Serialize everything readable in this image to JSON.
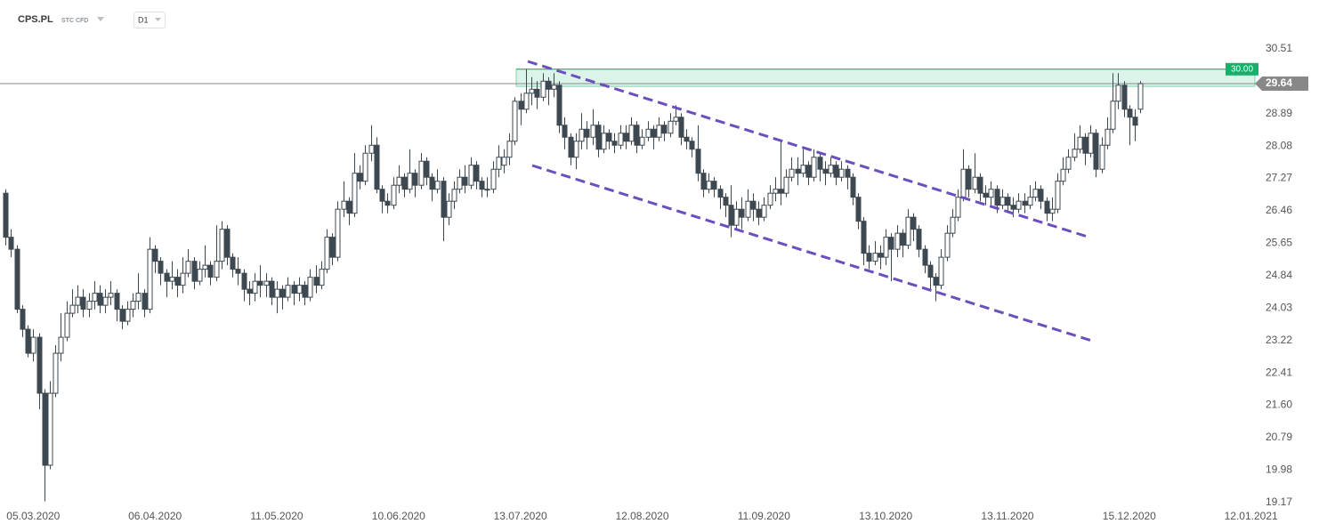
{
  "header": {
    "symbol": "CPS.PL",
    "instrument": "STC CFD",
    "interval": "D1"
  },
  "chart_data": {
    "type": "candlestick",
    "open": [
      26.9,
      25.8,
      25.5,
      24.0,
      23.5,
      22.9,
      23.3,
      21.9,
      20.1,
      21.9,
      22.9,
      23.3,
      23.9,
      24.1,
      24.3,
      24.0,
      24.2,
      24.4,
      24.1,
      24.3,
      24.4,
      24.0,
      23.7,
      24.0,
      24.2,
      24.4,
      24.0,
      25.5,
      25.2,
      24.9,
      24.7,
      24.8,
      24.6,
      24.9,
      25.2,
      24.7,
      25.0,
      25.1,
      24.8,
      25.2,
      26.0,
      25.3,
      25.0,
      24.9,
      24.5,
      24.4,
      24.7,
      24.6,
      24.7,
      24.3,
      24.5,
      24.3,
      24.6,
      24.4,
      24.6,
      24.3,
      24.8,
      24.6,
      25.0,
      25.8,
      25.3,
      26.5,
      26.7,
      26.4,
      27.4,
      27.2,
      27.9,
      28.1,
      27.0,
      26.7,
      26.6,
      27.1,
      27.3,
      27.0,
      27.4,
      27.1,
      27.7,
      27.3,
      27.0,
      27.2,
      26.3,
      26.7,
      27.0,
      27.3,
      27.1,
      27.6,
      27.2,
      27.0,
      27.0,
      27.5,
      27.6,
      27.8,
      28.2,
      29.2,
      29.0,
      29.4,
      29.5,
      29.3,
      29.7,
      29.5,
      29.6,
      28.6,
      28.3,
      27.8,
      28.2,
      28.5,
      28.3,
      28.6,
      28.0,
      28.4,
      28.2,
      28.1,
      28.4,
      28.2,
      28.6,
      28.1,
      28.3,
      28.5,
      28.3,
      28.6,
      28.4,
      28.7,
      28.8,
      28.3,
      28.2,
      28.0,
      27.4,
      27.0,
      27.2,
      27.0,
      26.8,
      26.6,
      26.1,
      26.5,
      26.3,
      26.7,
      26.5,
      26.3,
      26.6,
      26.9,
      27.0,
      26.9,
      27.3,
      27.5,
      27.4,
      27.6,
      27.3,
      27.8,
      27.5,
      27.4,
      27.6,
      27.3,
      27.5,
      27.3,
      26.8,
      26.2,
      25.4,
      25.2,
      25.4,
      25.3,
      25.8,
      25.5,
      25.9,
      25.6,
      26.3,
      26.0,
      25.5,
      25.1,
      24.8,
      24.6,
      25.3,
      25.9,
      26.3,
      26.8,
      27.5,
      27.0,
      27.3,
      26.9,
      26.8,
      27.0,
      26.6,
      26.8,
      26.6,
      26.5,
      26.7,
      26.6,
      26.8,
      27.0,
      26.7,
      26.4,
      26.5,
      27.2,
      27.5,
      27.8,
      28.0,
      28.3,
      27.9,
      28.4,
      27.5,
      28.1,
      28.5,
      29.2,
      29.6,
      29.0,
      28.8,
      29.0
    ],
    "high": [
      27.0,
      26.0,
      25.6,
      24.1,
      23.6,
      23.5,
      23.4,
      22.0,
      22.2,
      23.1,
      23.9,
      24.2,
      24.5,
      24.6,
      24.5,
      24.4,
      24.7,
      24.6,
      24.5,
      24.7,
      24.5,
      24.1,
      24.2,
      24.4,
      24.9,
      24.5,
      25.8,
      25.6,
      25.3,
      25.0,
      25.2,
      25.0,
      25.3,
      25.5,
      25.3,
      25.2,
      25.6,
      25.2,
      26.1,
      26.2,
      26.1,
      25.4,
      25.3,
      25.0,
      24.7,
      24.9,
      25.1,
      24.9,
      24.8,
      24.7,
      24.6,
      24.8,
      24.7,
      24.8,
      24.7,
      25.0,
      25.1,
      25.2,
      26.0,
      25.9,
      26.7,
      27.2,
      26.8,
      27.9,
      27.6,
      28.1,
      28.6,
      28.3,
      27.1,
      26.9,
      27.3,
      27.6,
      27.4,
      28.0,
      27.5,
      27.9,
      27.8,
      27.4,
      27.5,
      27.3,
      26.9,
      27.2,
      27.5,
      27.6,
      27.8,
      27.7,
      27.3,
      27.3,
      27.7,
      28.1,
      28.0,
      28.4,
      29.3,
      29.4,
      30.0,
      29.8,
      29.7,
      29.9,
      29.8,
      29.9,
      29.7,
      28.8,
      28.4,
      28.4,
      28.9,
      28.7,
      29.0,
      28.7,
      28.6,
      28.5,
      28.4,
      28.6,
      28.6,
      28.8,
      28.7,
      28.5,
      28.7,
      28.6,
      28.8,
      28.7,
      28.9,
      29.1,
      28.9,
      28.5,
      28.3,
      28.6,
      27.5,
      27.4,
      27.3,
      27.1,
      26.9,
      27.1,
      26.7,
      26.8,
      27.0,
      26.9,
      26.7,
      26.8,
      27.1,
      27.3,
      28.2,
      27.5,
      27.8,
      27.8,
      28.0,
      27.7,
      28.0,
      27.9,
      27.7,
      27.8,
      27.7,
      27.7,
      27.6,
      27.4,
      26.9,
      26.3,
      25.6,
      25.7,
      25.6,
      26.0,
      25.9,
      26.1,
      26.0,
      26.5,
      26.4,
      26.1,
      25.6,
      25.2,
      24.9,
      25.5,
      26.1,
      26.5,
      27.0,
      28.0,
      27.6,
      27.9,
      27.4,
      27.1,
      27.2,
      27.1,
      27.0,
      26.9,
      26.8,
      26.9,
      26.9,
      27.1,
      27.2,
      27.1,
      26.8,
      26.8,
      27.4,
      27.8,
      28.0,
      28.4,
      28.6,
      28.4,
      28.6,
      28.5,
      28.3,
      28.8,
      29.9,
      29.9,
      29.7,
      29.1,
      29.0,
      29.7
    ],
    "low": [
      25.6,
      25.3,
      23.9,
      23.3,
      22.8,
      22.7,
      21.5,
      19.2,
      20.0,
      21.8,
      22.7,
      23.2,
      23.8,
      23.9,
      23.8,
      23.8,
      24.0,
      23.9,
      23.9,
      24.1,
      23.7,
      23.5,
      23.6,
      23.8,
      24.0,
      23.8,
      23.9,
      24.9,
      24.6,
      24.3,
      24.5,
      24.3,
      24.4,
      24.8,
      24.5,
      24.6,
      24.8,
      24.6,
      24.7,
      25.0,
      25.1,
      24.8,
      24.6,
      24.2,
      24.1,
      24.2,
      24.3,
      24.3,
      24.1,
      23.9,
      24.0,
      24.2,
      24.1,
      24.2,
      24.1,
      24.2,
      24.4,
      24.5,
      24.9,
      25.1,
      25.2,
      26.3,
      26.1,
      26.3,
      27.0,
      27.1,
      27.7,
      26.9,
      26.4,
      26.4,
      26.5,
      26.9,
      26.8,
      26.9,
      26.8,
      27.0,
      27.1,
      26.7,
      26.9,
      25.7,
      26.1,
      26.5,
      26.9,
      26.9,
      27.0,
      27.0,
      26.8,
      26.8,
      26.9,
      27.3,
      27.4,
      27.6,
      28.1,
      28.6,
      28.9,
      29.1,
      29.0,
      29.2,
      29.1,
      29.3,
      28.4,
      28.0,
      27.6,
      27.5,
      28.0,
      28.0,
      28.1,
      27.8,
      27.9,
      28.0,
      27.9,
      28.0,
      28.0,
      28.1,
      27.9,
      28.0,
      28.2,
      28.0,
      28.2,
      28.2,
      28.3,
      28.6,
      28.1,
      28.0,
      27.8,
      27.2,
      26.8,
      26.9,
      26.8,
      26.5,
      26.3,
      25.8,
      26.0,
      26.0,
      26.2,
      26.2,
      26.1,
      26.2,
      26.5,
      26.7,
      26.6,
      26.8,
      27.2,
      27.1,
      27.3,
      27.1,
      27.2,
      27.2,
      27.1,
      27.3,
      27.1,
      27.2,
      27.0,
      26.6,
      26.0,
      25.1,
      25.0,
      25.1,
      25.0,
      25.1,
      24.7,
      25.3,
      25.3,
      25.5,
      25.7,
      25.3,
      24.9,
      24.5,
      24.2,
      24.5,
      25.2,
      25.8,
      26.2,
      26.7,
      26.8,
      26.9,
      26.7,
      26.6,
      26.6,
      26.4,
      26.5,
      26.4,
      26.3,
      26.4,
      26.4,
      26.5,
      26.7,
      26.5,
      26.2,
      26.2,
      26.4,
      27.1,
      27.4,
      27.7,
      27.9,
      27.6,
      27.8,
      27.3,
      27.4,
      28.0,
      28.4,
      29.0,
      28.8,
      28.1,
      28.2,
      28.9
    ],
    "close": [
      25.8,
      25.5,
      24.0,
      23.5,
      22.9,
      23.3,
      21.9,
      20.1,
      21.9,
      22.9,
      23.3,
      23.9,
      24.1,
      24.3,
      24.0,
      24.2,
      24.4,
      24.1,
      24.3,
      24.4,
      24.0,
      23.7,
      24.0,
      24.2,
      24.4,
      24.0,
      25.5,
      25.2,
      24.9,
      24.7,
      24.8,
      24.6,
      24.9,
      25.2,
      24.7,
      25.0,
      25.1,
      24.8,
      25.2,
      26.0,
      25.3,
      25.0,
      24.9,
      24.5,
      24.4,
      24.7,
      24.6,
      24.7,
      24.3,
      24.5,
      24.3,
      24.6,
      24.4,
      24.6,
      24.3,
      24.8,
      24.6,
      25.0,
      25.8,
      25.3,
      26.5,
      26.7,
      26.4,
      27.4,
      27.2,
      27.9,
      28.1,
      27.0,
      26.7,
      26.6,
      27.1,
      27.3,
      27.0,
      27.4,
      27.1,
      27.7,
      27.3,
      27.0,
      27.2,
      26.3,
      26.7,
      27.0,
      27.3,
      27.1,
      27.6,
      27.2,
      27.0,
      27.0,
      27.5,
      27.8,
      27.8,
      28.2,
      29.2,
      29.0,
      29.4,
      29.5,
      29.3,
      29.7,
      29.5,
      29.6,
      28.6,
      28.3,
      27.8,
      28.2,
      28.5,
      28.3,
      28.6,
      28.0,
      28.4,
      28.2,
      28.1,
      28.4,
      28.2,
      28.6,
      28.1,
      28.3,
      28.5,
      28.3,
      28.6,
      28.4,
      28.7,
      28.8,
      28.3,
      28.2,
      28.0,
      27.4,
      27.0,
      27.2,
      27.0,
      26.8,
      26.6,
      26.1,
      26.5,
      26.3,
      26.7,
      26.5,
      26.3,
      26.6,
      26.9,
      27.0,
      26.9,
      27.3,
      27.5,
      27.4,
      27.6,
      27.3,
      27.8,
      27.5,
      27.4,
      27.6,
      27.3,
      27.5,
      27.3,
      26.8,
      26.2,
      25.4,
      25.2,
      25.4,
      25.3,
      25.8,
      25.5,
      25.9,
      25.6,
      26.3,
      26.0,
      25.5,
      25.1,
      24.8,
      24.6,
      25.3,
      25.9,
      26.3,
      26.8,
      27.5,
      27.0,
      27.3,
      26.9,
      26.8,
      27.0,
      26.6,
      26.8,
      26.6,
      26.5,
      26.7,
      26.6,
      26.8,
      27.0,
      26.7,
      26.4,
      26.5,
      27.2,
      27.5,
      27.8,
      28.0,
      28.3,
      27.9,
      28.4,
      27.5,
      28.1,
      28.5,
      29.2,
      29.6,
      29.0,
      28.8,
      28.6,
      29.64
    ],
    "color": "#3d4850",
    "up_fill": "#ffffff",
    "xlim": [
      -1,
      225.7
    ],
    "xticks": [
      {
        "value": 5,
        "label": "05.03.2020"
      },
      {
        "value": 27,
        "label": "06.04.2020"
      },
      {
        "value": 49,
        "label": "11.05.2020"
      },
      {
        "value": 71,
        "label": "10.06.2020"
      },
      {
        "value": 93,
        "label": "13.07.2020"
      },
      {
        "value": 115,
        "label": "12.08.2020"
      },
      {
        "value": 137,
        "label": "11.09.2020"
      },
      {
        "value": 159,
        "label": "13.10.2020"
      },
      {
        "value": 181,
        "label": "13.11.2020"
      },
      {
        "value": 203,
        "label": "15.12.2020"
      },
      {
        "value": 225,
        "label": "12.01.2021"
      }
    ],
    "ylim": [
      19.01,
      31.73
    ],
    "yticks": [
      30.51,
      28.89,
      28.08,
      27.27,
      26.46,
      25.65,
      24.84,
      24.03,
      23.22,
      22.41,
      {
        "value": 21.6,
        "label": "21.60"
      },
      20.79,
      19.98,
      19.17
    ],
    "resistance_zone": {
      "top": {
        "value": 30,
        "label": "30.00"
      },
      "bottom": 29.57,
      "color": "#16b06a"
    },
    "current_price": {
      "value": 29.64,
      "label": "29.64",
      "color": "#888888"
    }
  }
}
